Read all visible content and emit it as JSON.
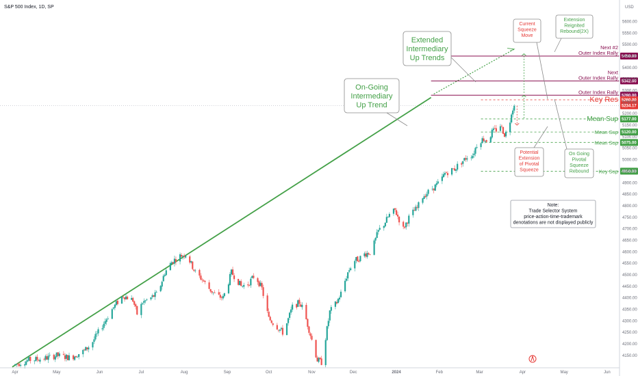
{
  "header": {
    "title": "S&P 500 Index, 1D, SP"
  },
  "chart_data": {
    "type": "candlestick",
    "currency": "USD",
    "ylim": [
      4120,
      5640
    ],
    "y_ticks": [
      4150,
      4200,
      4250,
      4300,
      4350,
      4400,
      4450,
      4500,
      4550,
      4600,
      4650,
      4700,
      4750,
      4800,
      4850,
      4900,
      4950,
      5000,
      5050,
      5100,
      5150,
      5200,
      5250,
      5300,
      5350,
      5400,
      5450,
      5500,
      5550,
      5600
    ],
    "x_ticks": [
      {
        "label": "Apr",
        "day": 0
      },
      {
        "label": "May",
        "day": 30
      },
      {
        "label": "Jun",
        "day": 61
      },
      {
        "label": "Jul",
        "day": 91
      },
      {
        "label": "Aug",
        "day": 122
      },
      {
        "label": "Sep",
        "day": 153
      },
      {
        "label": "Oct",
        "day": 183
      },
      {
        "label": "Nov",
        "day": 214
      },
      {
        "label": "Dec",
        "day": 244
      },
      {
        "label": "2024",
        "day": 275
      },
      {
        "label": "Feb",
        "day": 306
      },
      {
        "label": "Mar",
        "day": 335
      },
      {
        "label": "Apr",
        "day": 366
      },
      {
        "label": "May",
        "day": 396
      },
      {
        "label": "Jun",
        "day": 427
      }
    ],
    "x_range": [
      0,
      430
    ],
    "current_price": "5234.17",
    "price_path": [
      [
        0,
        4110
      ],
      [
        10,
        4130
      ],
      [
        20,
        4135
      ],
      [
        30,
        4150
      ],
      [
        40,
        4140
      ],
      [
        50,
        4170
      ],
      [
        55,
        4200
      ],
      [
        63,
        4280
      ],
      [
        70,
        4350
      ],
      [
        75,
        4390
      ],
      [
        78,
        4410
      ],
      [
        85,
        4390
      ],
      [
        88,
        4330
      ],
      [
        92,
        4380
      ],
      [
        98,
        4400
      ],
      [
        103,
        4420
      ],
      [
        108,
        4510
      ],
      [
        113,
        4555
      ],
      [
        118,
        4580
      ],
      [
        123,
        4590
      ],
      [
        126,
        4560
      ],
      [
        130,
        4510
      ],
      [
        135,
        4480
      ],
      [
        140,
        4440
      ],
      [
        145,
        4410
      ],
      [
        150,
        4400
      ],
      [
        153,
        4450
      ],
      [
        156,
        4510
      ],
      [
        160,
        4480
      ],
      [
        163,
        4450
      ],
      [
        168,
        4460
      ],
      [
        173,
        4500
      ],
      [
        178,
        4440
      ],
      [
        183,
        4310
      ],
      [
        188,
        4280
      ],
      [
        193,
        4250
      ],
      [
        196,
        4290
      ],
      [
        200,
        4360
      ],
      [
        205,
        4380
      ],
      [
        208,
        4350
      ],
      [
        213,
        4240
      ],
      [
        218,
        4130
      ],
      [
        221,
        4120
      ],
      [
        223,
        4190
      ],
      [
        227,
        4340
      ],
      [
        232,
        4380
      ],
      [
        235,
        4420
      ],
      [
        240,
        4510
      ],
      [
        244,
        4560
      ],
      [
        248,
        4570
      ],
      [
        252,
        4590
      ],
      [
        257,
        4600
      ],
      [
        262,
        4690
      ],
      [
        266,
        4720
      ],
      [
        270,
        4760
      ],
      [
        274,
        4780
      ],
      [
        277,
        4740
      ],
      [
        280,
        4700
      ],
      [
        285,
        4760
      ],
      [
        290,
        4790
      ],
      [
        294,
        4840
      ],
      [
        298,
        4860
      ],
      [
        302,
        4880
      ],
      [
        306,
        4900
      ],
      [
        310,
        4940
      ],
      [
        313,
        4950
      ],
      [
        317,
        4960
      ],
      [
        320,
        4980
      ],
      [
        324,
        5000
      ],
      [
        327,
        5020
      ],
      [
        330,
        5020
      ],
      [
        334,
        5080
      ],
      [
        338,
        5090
      ],
      [
        341,
        5080
      ],
      [
        344,
        5120
      ],
      [
        347,
        5130
      ],
      [
        350,
        5150
      ],
      [
        353,
        5110
      ],
      [
        356,
        5130
      ],
      [
        358,
        5210
      ],
      [
        360,
        5234.17
      ]
    ],
    "trendline": {
      "from": [
        -2,
        4100
      ],
      "to": [
        300,
        5270
      ]
    },
    "trendline_ext": {
      "from": [
        302,
        5285
      ],
      "to": [
        360,
        5480
      ]
    },
    "levels": [
      {
        "name": "Next #2 Outer Index Rally",
        "value": "5450.00",
        "price": 5450,
        "color": "#880e4f",
        "style": "solid"
      },
      {
        "name": "Next Outer Index Rally",
        "value": "5342.00",
        "price": 5342,
        "color": "#880e4f",
        "style": "solid"
      },
      {
        "name": "Outer Index Rally",
        "value": "5280.00",
        "price": 5280,
        "color": "#880e4f",
        "style": "solid"
      },
      {
        "name": "Key Res",
        "value": "5260.00",
        "price": 5260,
        "color": "#e53935",
        "style": "dashed"
      },
      {
        "name": "Mean Sup",
        "value": "5177.00",
        "price": 5177,
        "color": "#43a047",
        "style": "dashed"
      },
      {
        "name": "Mean Sup",
        "value": "5120.00",
        "price": 5120,
        "color": "#43a047",
        "style": "dashed"
      },
      {
        "name": "Mean Sup",
        "value": "5075.00",
        "price": 5075,
        "color": "#43a047",
        "style": "dashed"
      },
      {
        "name": "Key Sup",
        "value": "4950.00",
        "price": 4950,
        "color": "#43a047",
        "style": "dashed"
      }
    ],
    "annotations": {
      "ongoing": "On-Going Intermediary Up Trend",
      "extended": "Extended Intermediary Up Trends",
      "current_squeeze": "Current Squeeze Move",
      "extension_reignited": "Extension Reignited Rebound(2X)",
      "potential_extension": "Potential Extension of Pivotal Squeeze",
      "ongoing_pivotal": "On Going Pivotal Squeeze Rebound",
      "note": "Note: Trade Selector System price-action-time-trademark denotations are not displayed publicly"
    },
    "colors": {
      "up": "#26a69a",
      "down": "#ef5350",
      "trend": "#43a047",
      "resist": "#880e4f",
      "res": "#e53935"
    }
  }
}
